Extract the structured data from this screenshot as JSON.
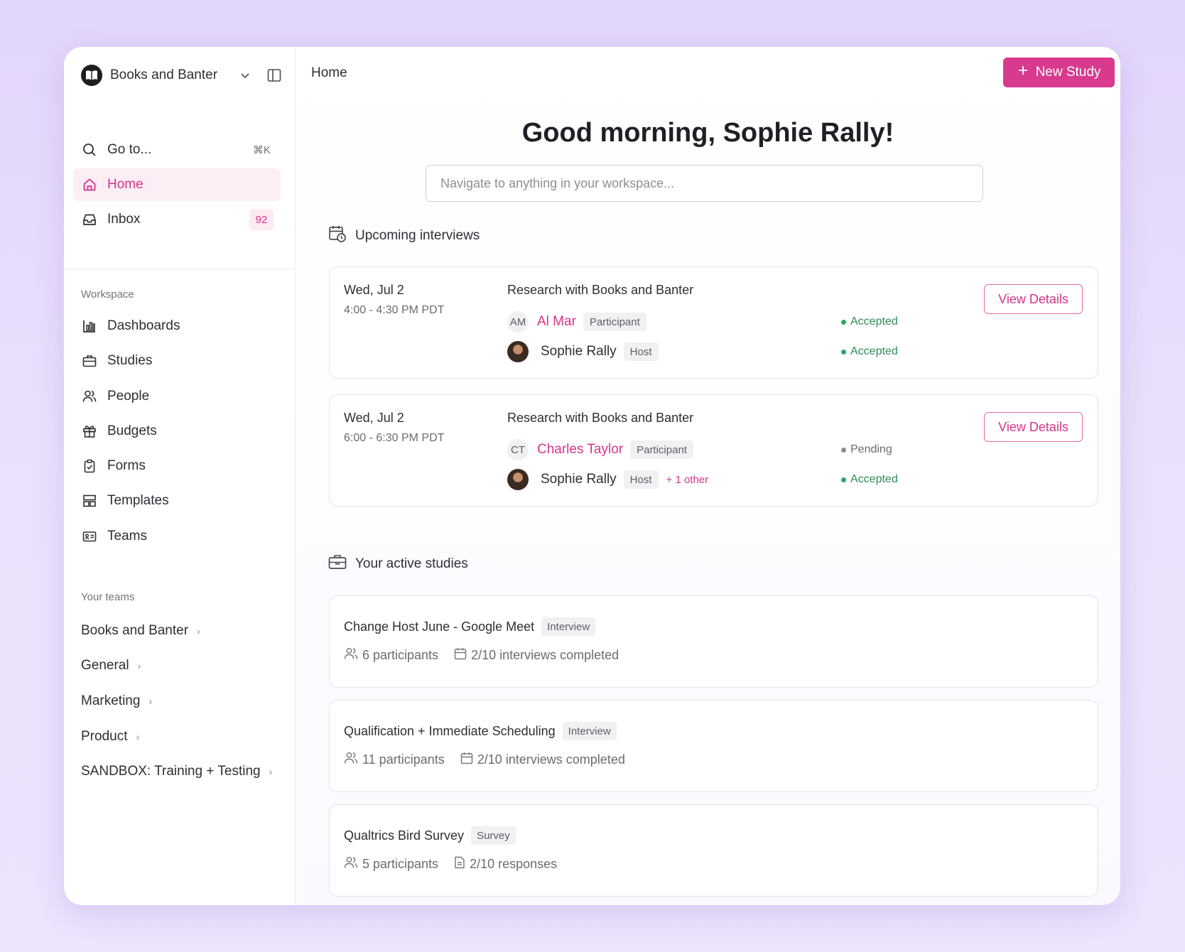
{
  "workspace": {
    "name": "Books and Banter"
  },
  "nav_top": [
    {
      "label": "Go to...",
      "icon": "search-icon",
      "shortcut": "⌘K"
    },
    {
      "label": "Home",
      "icon": "home-icon",
      "active": true
    },
    {
      "label": "Inbox",
      "icon": "inbox-icon",
      "badge": "92"
    }
  ],
  "workspace_section": {
    "label": "Workspace",
    "items": [
      {
        "label": "Dashboards",
        "icon": "bar-chart-icon"
      },
      {
        "label": "Studies",
        "icon": "briefcase-icon"
      },
      {
        "label": "People",
        "icon": "people-icon"
      },
      {
        "label": "Budgets",
        "icon": "gift-icon"
      },
      {
        "label": "Forms",
        "icon": "clipboard-icon"
      },
      {
        "label": "Templates",
        "icon": "layout-icon"
      },
      {
        "label": "Teams",
        "icon": "id-card-icon"
      }
    ]
  },
  "teams_section": {
    "label": "Your teams",
    "items": [
      "Books and Banter",
      "General",
      "Marketing",
      "Product",
      "SANDBOX: Training + Testing"
    ]
  },
  "header": {
    "breadcrumb": "Home",
    "new_study_label": "New Study"
  },
  "greeting": "Good morning, Sophie Rally!",
  "search": {
    "placeholder": "Navigate to anything in your workspace..."
  },
  "upcoming": {
    "title": "Upcoming interviews",
    "interviews": [
      {
        "date": "Wed, Jul 2",
        "time": "4:00 - 4:30 PM PDT",
        "title": "Research with Books and Banter",
        "participant": {
          "initials": "AM",
          "name": "Al Mar",
          "role": "Participant",
          "status": "Accepted"
        },
        "host": {
          "name": "Sophie Rally",
          "role": "Host",
          "status": "Accepted",
          "more": ""
        },
        "button": "View Details"
      },
      {
        "date": "Wed, Jul 2",
        "time": "6:00 - 6:30 PM PDT",
        "title": "Research with Books and Banter",
        "participant": {
          "initials": "CT",
          "name": "Charles Taylor",
          "role": "Participant",
          "status": "Pending"
        },
        "host": {
          "name": "Sophie Rally",
          "role": "Host",
          "status": "Accepted",
          "more": "+ 1 other"
        },
        "button": "View Details"
      }
    ]
  },
  "active_studies": {
    "title": "Your active studies",
    "studies": [
      {
        "name": "Change Host June - Google Meet",
        "type": "Interview",
        "participants": "6 participants",
        "progress": "2/10 interviews completed",
        "progress_icon": "calendar-icon"
      },
      {
        "name": "Qualification + Immediate Scheduling",
        "type": "Interview",
        "participants": "11 participants",
        "progress": "2/10 interviews completed",
        "progress_icon": "calendar-icon"
      },
      {
        "name": "Qualtrics Bird Survey",
        "type": "Survey",
        "participants": "5 participants",
        "progress": "2/10 responses",
        "progress_icon": "document-icon"
      }
    ]
  },
  "colors": {
    "accent": "#d83a8e",
    "accepted": "#2e8b57",
    "pending": "#6b6b74"
  }
}
